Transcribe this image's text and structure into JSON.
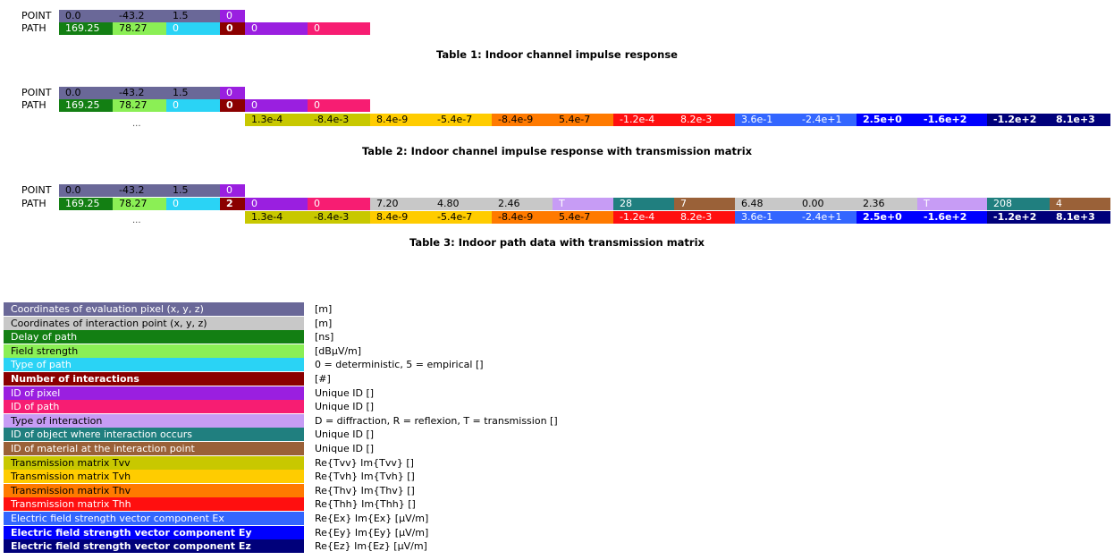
{
  "labels": {
    "point": "POINT",
    "path": "PATH",
    "ellipsis": "..."
  },
  "colors": {
    "eval_pixel": "#6a6898",
    "interaction_point": "#c8c8c8",
    "delay": "#137f13",
    "field_strength": "#8bef55",
    "type_of_path": "#2ad3f5",
    "num_interactions": "#8b0000",
    "pixel_id": "#9a1fe0",
    "path_id": "#f71d72",
    "type_of_interaction": "#c79cf5",
    "object_id": "#207f7f",
    "material_id": "#9a6138",
    "tvv": "#c8c800",
    "tvh": "#ffcc00",
    "thv": "#ff7a00",
    "thh": "#ff0f0f",
    "ex": "#3366ff",
    "ey": "#0000ff",
    "ez": "#00007a"
  },
  "table1": {
    "point": [
      "0.0",
      "-43.2",
      "1.5",
      "0"
    ],
    "path": [
      "169.25",
      "78.27",
      "0",
      "0",
      "0",
      "0"
    ],
    "caption": "Table 1: Indoor channel impulse response"
  },
  "table2": {
    "point": [
      "0.0",
      "-43.2",
      "1.5",
      "0"
    ],
    "path": [
      "169.25",
      "78.27",
      "0",
      "0",
      "0",
      "0"
    ],
    "matrix": [
      "1.3e-4",
      "-8.4e-3",
      "8.4e-9",
      "-5.4e-7",
      "-8.4e-9",
      "5.4e-7",
      "-1.2e-4",
      "8.2e-3",
      "3.6e-1",
      "-2.4e+1",
      "2.5e+0",
      "-1.6e+2",
      "-1.2e+2",
      "8.1e+3"
    ],
    "caption": "Table 2: Indoor channel impulse response with transmission matrix"
  },
  "table3": {
    "point": [
      "0.0",
      "-43.2",
      "1.5",
      "0"
    ],
    "path": [
      "169.25",
      "78.27",
      "0",
      "2",
      "0",
      "0",
      "7.20",
      "4.80",
      "2.46",
      "T",
      "28",
      "7",
      "6.48",
      "0.00",
      "2.36",
      "T",
      "208",
      "4"
    ],
    "matrix": [
      "1.3e-4",
      "-8.4e-3",
      "8.4e-9",
      "-5.4e-7",
      "-8.4e-9",
      "5.4e-7",
      "-1.2e-4",
      "8.2e-3",
      "3.6e-1",
      "-2.4e+1",
      "2.5e+0",
      "-1.6e+2",
      "-1.2e+2",
      "8.1e+3"
    ],
    "caption": "Table 3: Indoor path data with transmission matrix"
  },
  "legend": [
    {
      "label": "Coordinates of evaluation pixel (x, y, z)",
      "desc": "[m]"
    },
    {
      "label": "Coordinates of interaction point (x, y, z)",
      "desc": "[m]"
    },
    {
      "label": "Delay of path",
      "desc": "[ns]"
    },
    {
      "label": "Field strength",
      "desc": "[dBµV/m]"
    },
    {
      "label": "Type of path",
      "desc": "0 = deterministic, 5 = empirical []"
    },
    {
      "label": "Number of interactions",
      "desc": "[#]"
    },
    {
      "label": "ID of pixel",
      "desc": "Unique ID []"
    },
    {
      "label": "ID of path",
      "desc": "Unique ID []"
    },
    {
      "label": "Type of interaction",
      "desc": "D = diffraction, R = reflexion, T = transmission []"
    },
    {
      "label": "ID of object where interaction occurs",
      "desc": "Unique ID []"
    },
    {
      "label": "ID of material at the interaction point",
      "desc": "Unique ID []"
    },
    {
      "label": "Transmission matrix Tvv",
      "desc": "Re{Tvv} Im{Tvv} []"
    },
    {
      "label": "Transmission matrix Tvh",
      "desc": "Re{Tvh} Im{Tvh} []"
    },
    {
      "label": "Transmission matrix Thv",
      "desc": "Re{Thv} Im{Thv} []"
    },
    {
      "label": "Transmission matrix Thh",
      "desc": "Re{Thh} Im{Thh} []"
    },
    {
      "label": "Electric field strength vector component Ex",
      "desc": "Re{Ex} Im{Ex} [µV/m]"
    },
    {
      "label": "Electric field strength vector component Ey",
      "desc": "Re{Ey} Im{Ey} [µV/m]"
    },
    {
      "label": "Electric field strength vector component Ez",
      "desc": "Re{Ez} Im{Ez} [µV/m]"
    }
  ]
}
